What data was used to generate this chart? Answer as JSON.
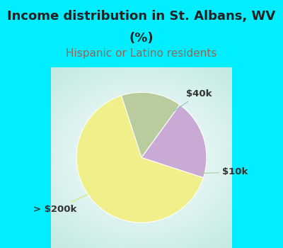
{
  "title_line1": "Income distribution in St. Albans, WV",
  "title_line2": "(%)",
  "subtitle": "Hispanic or Latino residents",
  "slices": [
    {
      "label": "> $200k",
      "value": 65,
      "color": "#f0f08a"
    },
    {
      "label": "$40k",
      "value": 20,
      "color": "#c8aad4"
    },
    {
      "label": "$10k",
      "value": 15,
      "color": "#b8cc9e"
    }
  ],
  "title_fontsize": 13,
  "subtitle_fontsize": 11,
  "subtitle_color": "#996655",
  "title_color": "#222222",
  "bg_color": "#00eeff",
  "startangle": 108,
  "label_fontsize": 9.5,
  "label_color": "#333333",
  "line_color": "#aaccaa"
}
